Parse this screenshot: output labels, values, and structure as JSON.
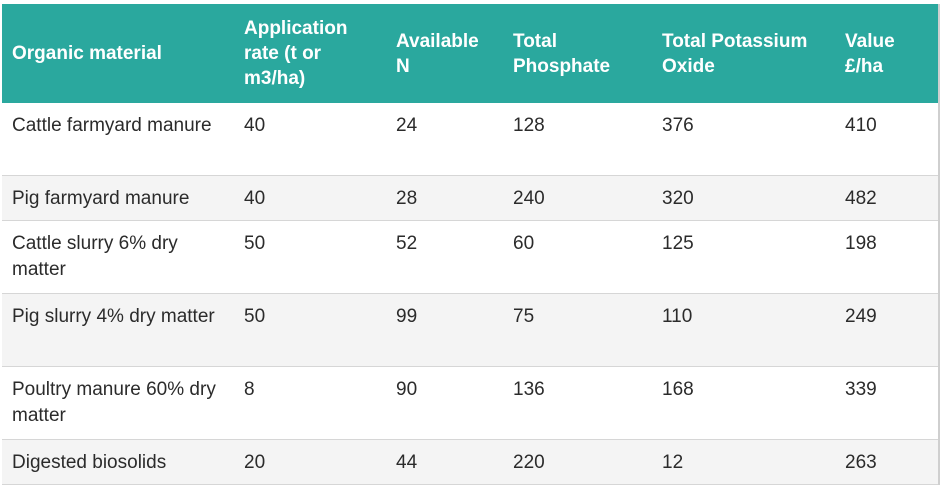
{
  "table": {
    "headers": [
      "Organic material",
      "Application rate (t or m3/ha)",
      "Available N",
      "Total Phosphate",
      "Total Potassium Oxide",
      "Value £/ha"
    ],
    "rows": [
      [
        "Cattle farmyard manure",
        "40",
        "24",
        "128",
        "376",
        "410"
      ],
      [
        "Pig farmyard manure",
        "40",
        "28",
        "240",
        "320",
        "482"
      ],
      [
        "Cattle slurry 6% dry matter",
        "50",
        "52",
        "60",
        "125",
        "198"
      ],
      [
        "Pig slurry 4% dry matter",
        "50",
        "99",
        "75",
        "110",
        "249"
      ],
      [
        "Poultry manure 60% dry matter",
        "8",
        "90",
        "136",
        "168",
        "339"
      ],
      [
        "Digested biosolids",
        "20",
        "44",
        "220",
        "12",
        "263"
      ]
    ]
  },
  "colors": {
    "header_bg": "#2aa89e",
    "header_text": "#ffffff",
    "row_alt_bg": "#f4f4f4",
    "body_text": "#2b2b2b"
  }
}
